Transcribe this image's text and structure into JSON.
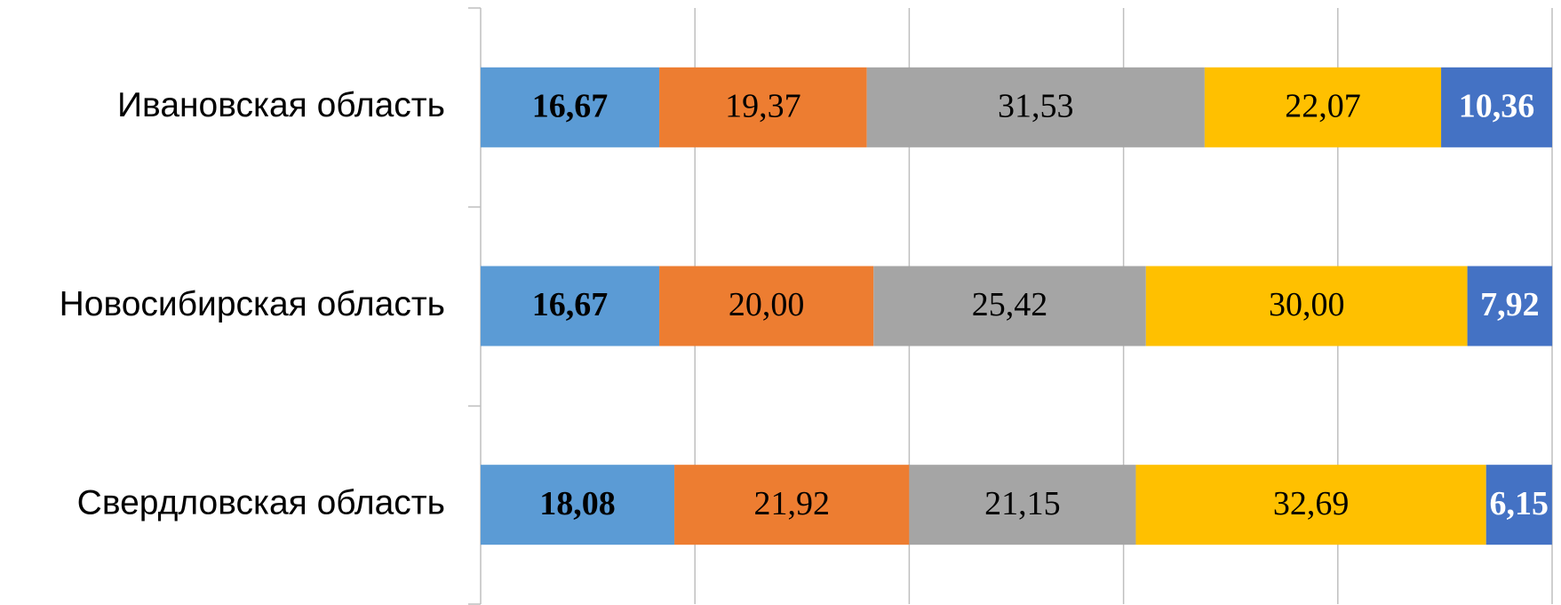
{
  "chart_data": {
    "type": "stacked_barh",
    "categories": [
      "Ивановская область",
      "Новосибирская область",
      "Свердловская область"
    ],
    "series": [
      {
        "color": "#5b9bd5",
        "values": [
          16.67,
          16.67,
          18.08
        ],
        "value_labels": [
          "16,67",
          "16,67",
          "18,08"
        ],
        "label_color": "#000000",
        "label_bold": true
      },
      {
        "color": "#ed7d31",
        "values": [
          19.37,
          20.0,
          21.92
        ],
        "value_labels": [
          "19,37",
          "20,00",
          "21,92"
        ],
        "label_color": "#000000",
        "label_bold": false
      },
      {
        "color": "#a5a5a5",
        "values": [
          31.53,
          25.42,
          21.15
        ],
        "value_labels": [
          "31,53",
          "25,42",
          "21,15"
        ],
        "label_color": "#000000",
        "label_bold": false
      },
      {
        "color": "#ffc000",
        "values": [
          22.07,
          30.0,
          32.69
        ],
        "value_labels": [
          "22,07",
          "30,00",
          "32,69"
        ],
        "label_color": "#000000",
        "label_bold": false
      },
      {
        "color": "#4472c4",
        "values": [
          10.36,
          7.92,
          6.15
        ],
        "value_labels": [
          "10,36",
          "7,92",
          "6,15"
        ],
        "label_color": "#ffffff",
        "label_bold": true
      }
    ],
    "xlim": [
      0,
      100
    ],
    "xticks": [
      0,
      20,
      40,
      60,
      80,
      100
    ],
    "grid": true
  }
}
